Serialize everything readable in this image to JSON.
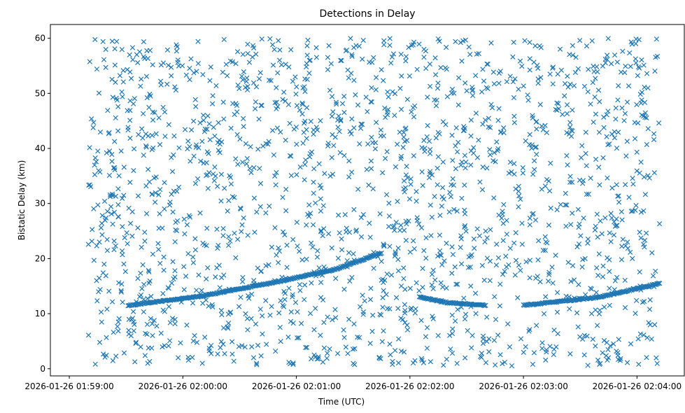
{
  "chart_data": {
    "type": "scatter",
    "title": "Detections in Delay",
    "xlabel": "Time (UTC)",
    "ylabel": "Bistatic Delay (km)",
    "x_ticks": [
      "2026-01-26 01:59:00",
      "2026-01-26 02:00:00",
      "2026-01-26 02:01:00",
      "2026-01-26 02:02:00",
      "2026-01-26 02:03:00",
      "2026-01-26 02:04:00"
    ],
    "x_range": [
      "2026-01-26 01:58:50",
      "2026-01-26 02:04:25"
    ],
    "x_data_range": [
      "2026-01-26 01:59:10",
      "2026-01-26 02:04:12"
    ],
    "y_ticks": [
      0,
      10,
      20,
      30,
      40,
      50,
      60
    ],
    "ylim": [
      -1.3,
      62.5
    ],
    "grid": false,
    "marker": "x",
    "color": "#1f77b4",
    "series": [
      {
        "description": "clutter",
        "distribution": "uniform",
        "count": 1800,
        "x_range": [
          "2026-01-26 01:59:10",
          "2026-01-26 02:04:12"
        ],
        "y_range": [
          0.5,
          60
        ]
      },
      {
        "description": "target track",
        "segments": [
          {
            "x": [
              "2026-01-26 01:59:31",
              "2026-01-26 02:00:10",
              "2026-01-26 02:00:50",
              "2026-01-26 02:01:20",
              "2026-01-26 02:01:45"
            ],
            "y": [
              11.5,
              13.2,
              15.8,
              18.0,
              21.0
            ]
          },
          {
            "x": [
              "2026-01-26 02:02:05",
              "2026-01-26 02:02:20",
              "2026-01-26 02:02:40"
            ],
            "y": [
              13.0,
              12.0,
              11.5
            ]
          },
          {
            "x": [
              "2026-01-26 02:03:00",
              "2026-01-26 02:03:40",
              "2026-01-26 02:04:12"
            ],
            "y": [
              11.5,
              13.0,
              15.5
            ]
          }
        ]
      }
    ]
  }
}
